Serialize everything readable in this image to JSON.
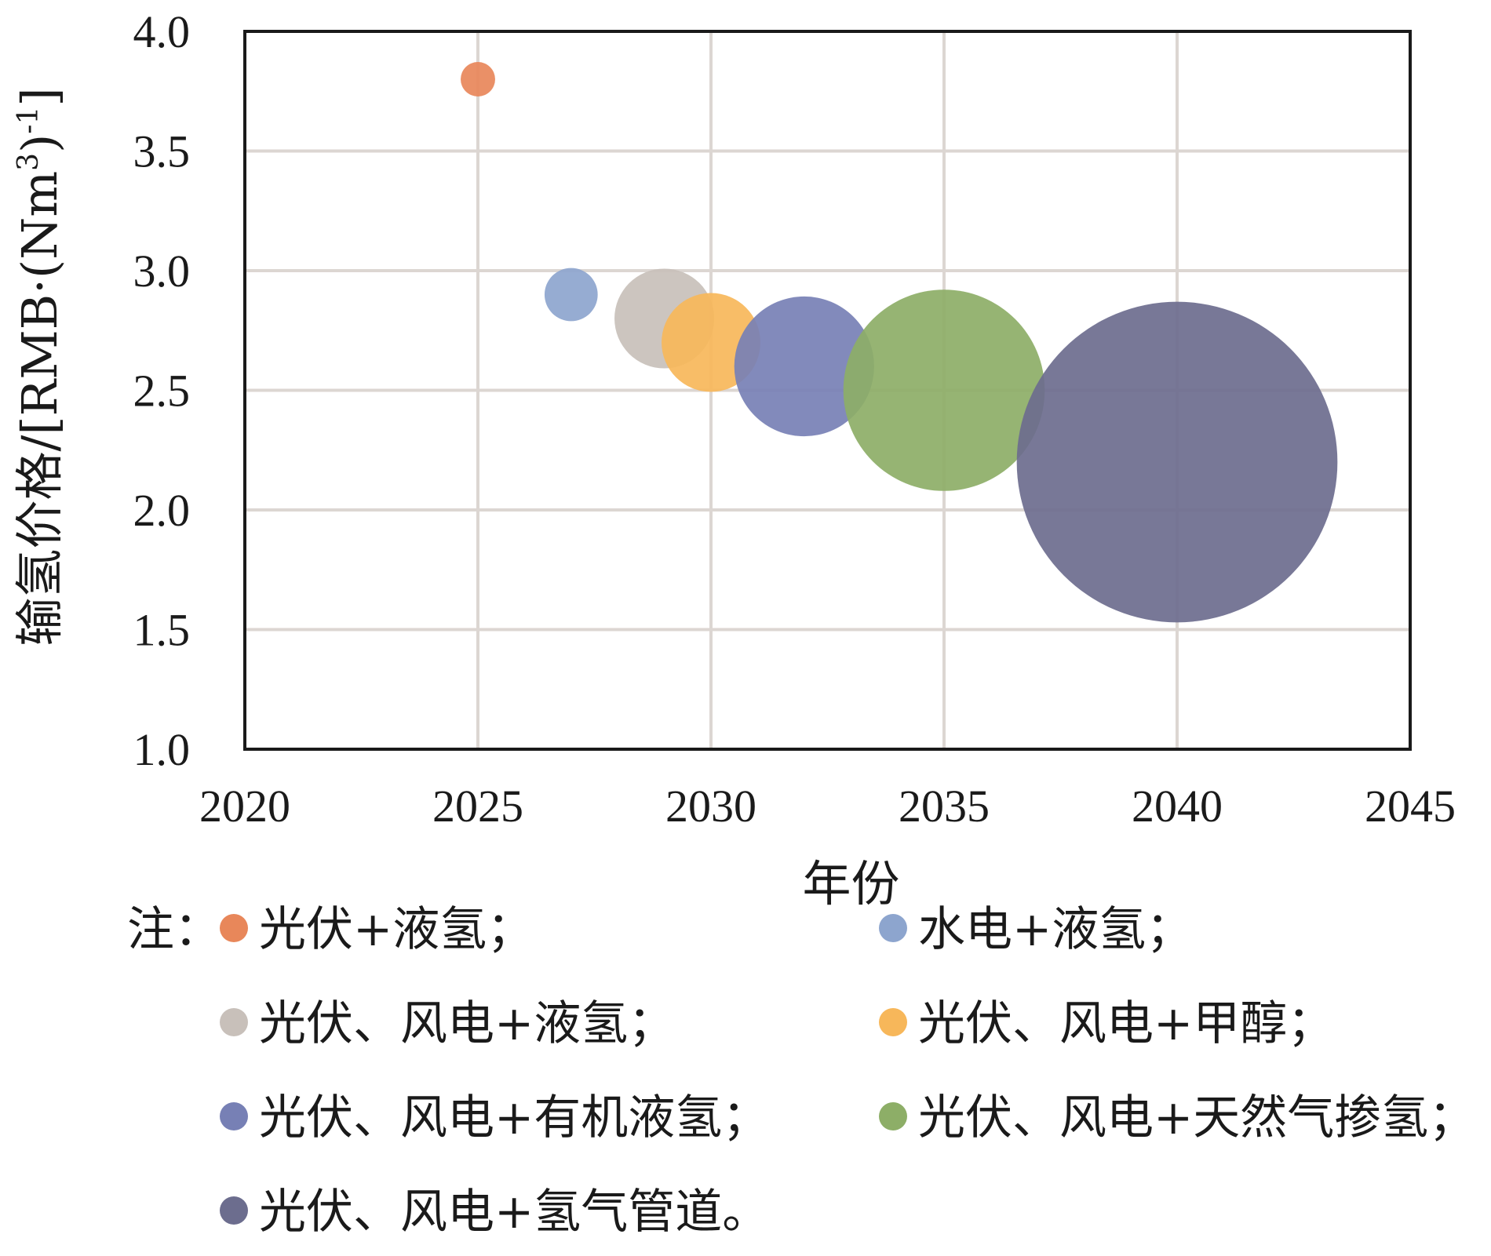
{
  "chart_data": {
    "type": "scatter",
    "subtype": "bubble",
    "xlabel": "年份",
    "ylabel_main": "输氢价格/[RMB·(Nm",
    "ylabel_sup1": "3",
    "ylabel_mid": ")",
    "ylabel_sup2": "-1",
    "ylabel_end": "]",
    "xlim": [
      2020,
      2045
    ],
    "ylim": [
      1.0,
      4.0
    ],
    "x_ticks": [
      "2020",
      "2025",
      "2030",
      "2035",
      "2040",
      "2045"
    ],
    "x_tick_values": [
      2020,
      2025,
      2030,
      2035,
      2040,
      2045
    ],
    "y_ticks": [
      "1.0",
      "1.5",
      "2.0",
      "2.5",
      "3.0",
      "3.5",
      "4.0"
    ],
    "y_tick_values": [
      1.0,
      1.5,
      2.0,
      2.5,
      3.0,
      3.5,
      4.0
    ],
    "grid": true,
    "legend_prefix": "注：",
    "series": [
      {
        "name": "光伏+液氢；",
        "x": 2025,
        "y": 3.8,
        "radius_x_units": 0.37,
        "color": "#E8875A"
      },
      {
        "name": "水电+液氢；",
        "x": 2027,
        "y": 2.9,
        "radius_x_units": 0.57,
        "color": "#8DA5CE"
      },
      {
        "name": "光伏、风电+液氢；",
        "x": 2029,
        "y": 2.8,
        "radius_x_units": 1.07,
        "color": "#C8C0BA"
      },
      {
        "name": "光伏、风电+甲醇；",
        "x": 2030,
        "y": 2.7,
        "radius_x_units": 1.06,
        "color": "#F7B75A"
      },
      {
        "name": "光伏、风电+有机液氢；",
        "x": 2032,
        "y": 2.6,
        "radius_x_units": 1.5,
        "color": "#7780B5"
      },
      {
        "name": "光伏、风电+天然气掺氢；",
        "x": 2035,
        "y": 2.5,
        "radius_x_units": 2.16,
        "color": "#8DAE67"
      },
      {
        "name": "光伏、风电+氢气管道。",
        "x": 2040,
        "y": 2.2,
        "radius_x_units": 3.44,
        "color": "#6C6D8E"
      }
    ]
  }
}
